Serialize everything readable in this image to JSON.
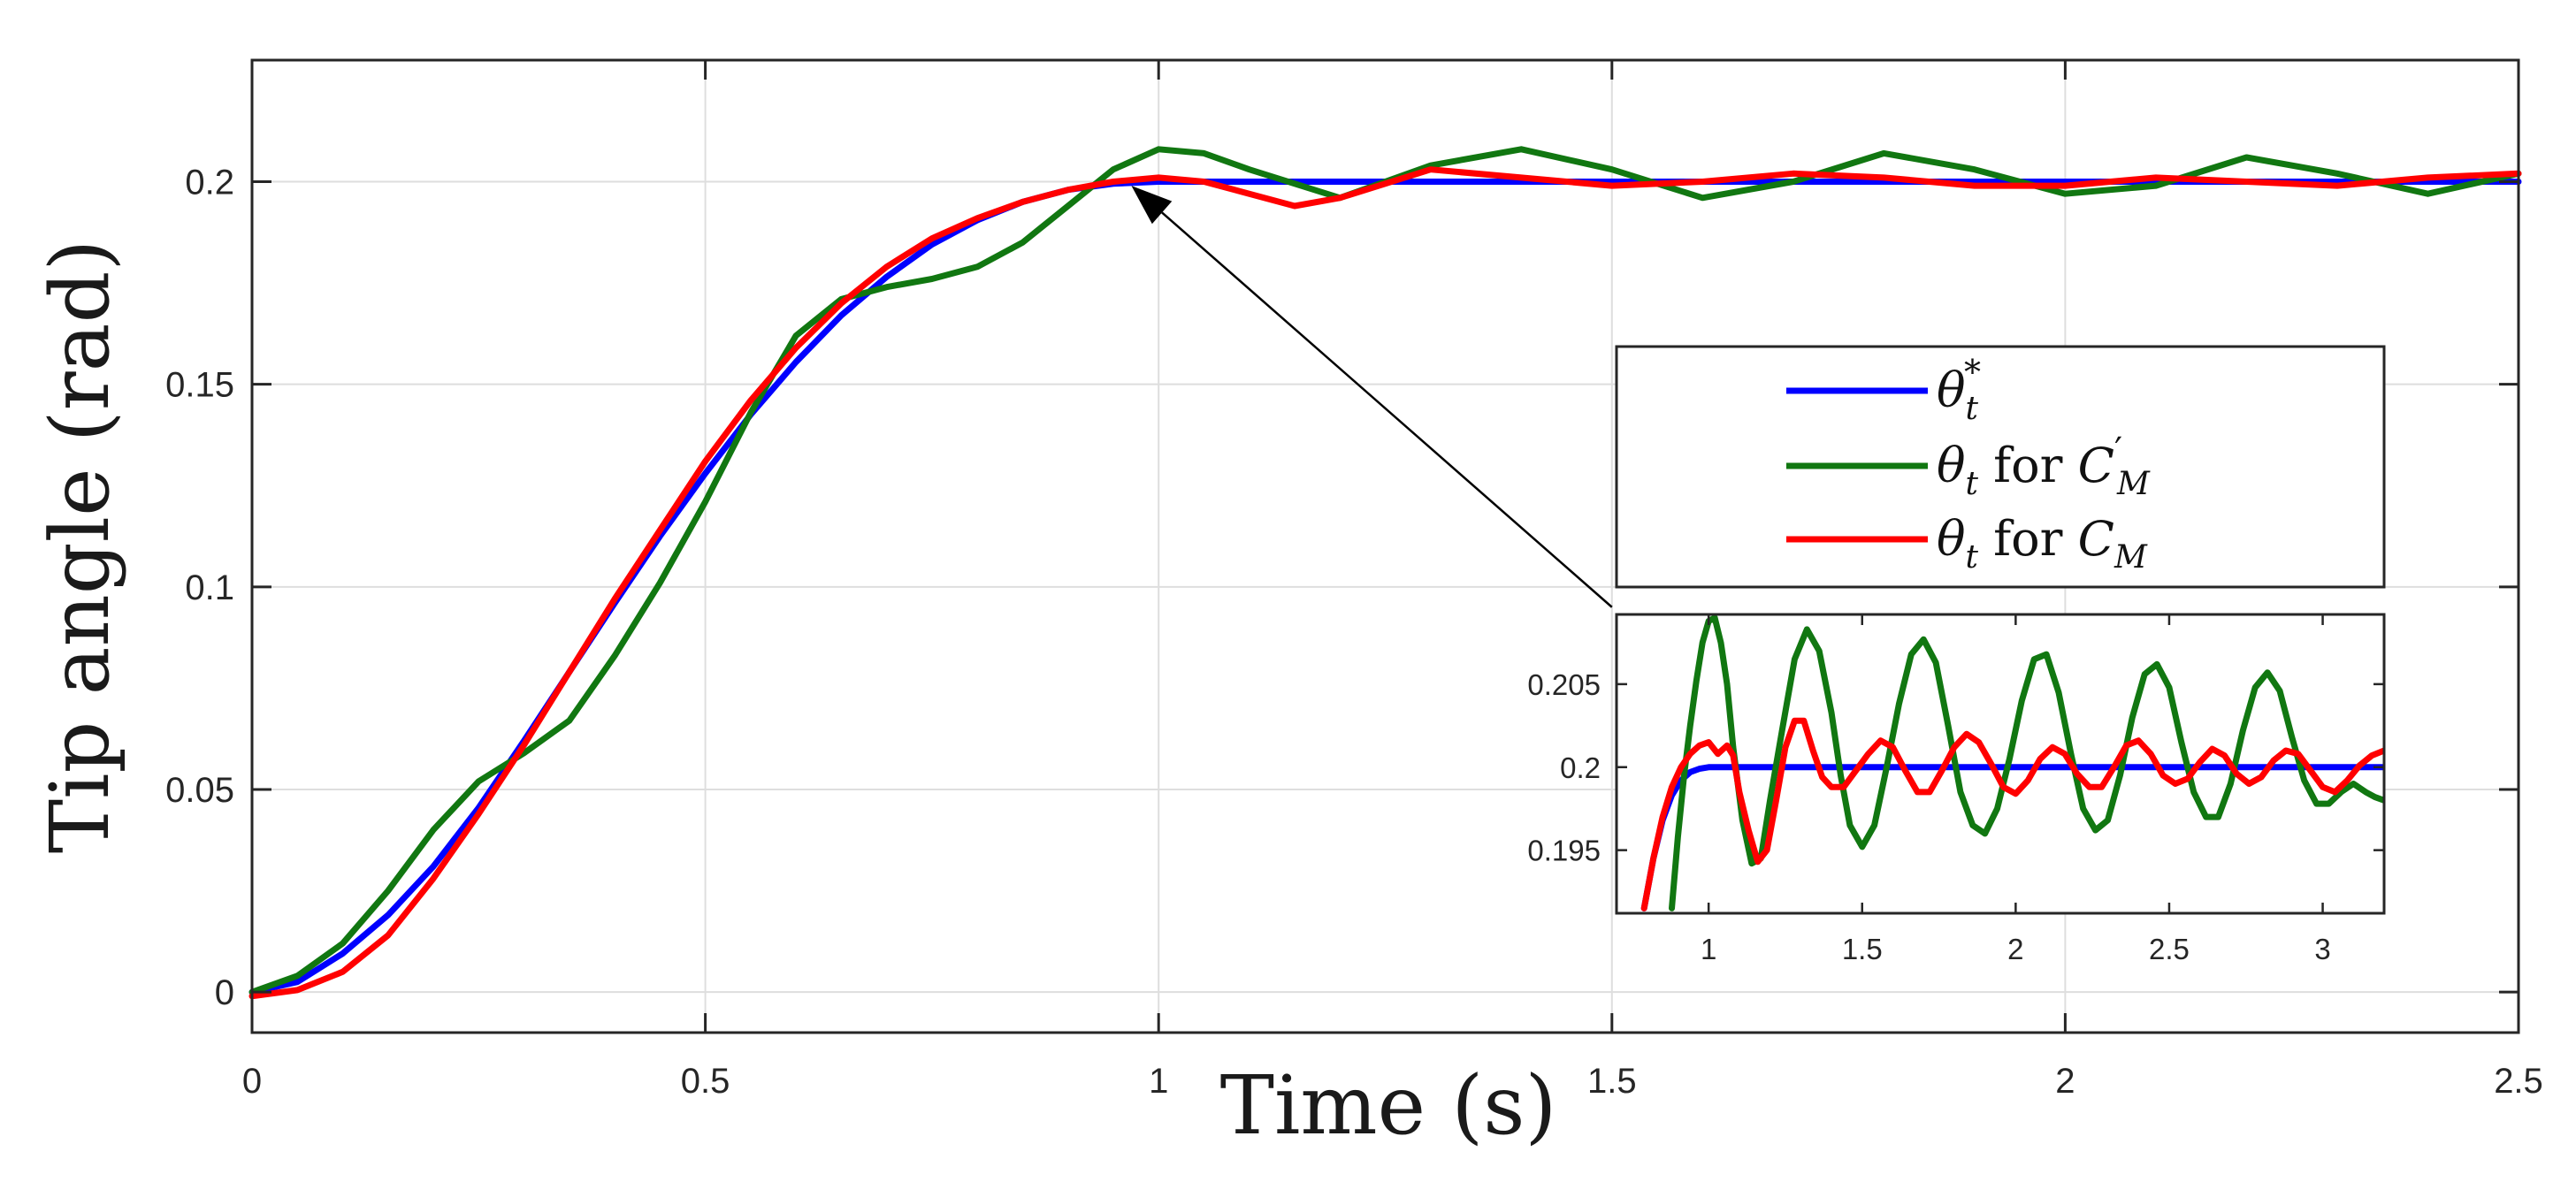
{
  "chart_data": [
    {
      "type": "line",
      "xlabel": "Time (s)",
      "ylabel": "Tip angle (rad)",
      "xlim": [
        0,
        2.5
      ],
      "ylim": [
        -0.01,
        0.23
      ],
      "xticks": [
        0,
        0.5,
        1,
        1.5,
        2,
        2.5
      ],
      "xtick_labels": [
        "0",
        "0.5",
        "1",
        "1.5",
        "2",
        "2.5"
      ],
      "yticks": [
        0,
        0.05,
        0.1,
        0.15,
        0.2
      ],
      "ytick_labels": [
        "0",
        "0.05",
        "0.1",
        "0.15",
        "0.2"
      ],
      "grid": true,
      "legend_position": "center-right",
      "series": [
        {
          "name": "θ*t",
          "color": "#0000ff",
          "x": [
            0,
            0.05,
            0.1,
            0.15,
            0.2,
            0.25,
            0.3,
            0.35,
            0.4,
            0.45,
            0.5,
            0.55,
            0.6,
            0.65,
            0.7,
            0.75,
            0.8,
            0.85,
            0.9,
            0.95,
            1.0,
            1.05,
            1.5,
            2.0,
            2.5
          ],
          "y": [
            0,
            0.0025,
            0.0095,
            0.019,
            0.031,
            0.0455,
            0.062,
            0.079,
            0.096,
            0.1125,
            0.128,
            0.1425,
            0.1555,
            0.167,
            0.1765,
            0.1845,
            0.1905,
            0.195,
            0.198,
            0.1995,
            0.2,
            0.2,
            0.2,
            0.2,
            0.2
          ]
        },
        {
          "name": "θt for C′M",
          "color": "#117711",
          "x": [
            0,
            0.05,
            0.1,
            0.15,
            0.2,
            0.25,
            0.3,
            0.35,
            0.4,
            0.45,
            0.5,
            0.55,
            0.6,
            0.65,
            0.7,
            0.75,
            0.8,
            0.85,
            0.9,
            0.95,
            1.0,
            1.05,
            1.1,
            1.2,
            1.3,
            1.4,
            1.5,
            1.6,
            1.7,
            1.8,
            1.9,
            2.0,
            2.1,
            2.2,
            2.3,
            2.4,
            2.5
          ],
          "y": [
            0,
            0.004,
            0.012,
            0.025,
            0.04,
            0.052,
            0.059,
            0.067,
            0.083,
            0.101,
            0.121,
            0.143,
            0.162,
            0.171,
            0.174,
            0.176,
            0.179,
            0.185,
            0.194,
            0.203,
            0.208,
            0.207,
            0.203,
            0.196,
            0.204,
            0.208,
            0.203,
            0.196,
            0.2,
            0.207,
            0.203,
            0.197,
            0.199,
            0.206,
            0.202,
            0.197,
            0.202
          ]
        },
        {
          "name": "θt for CM",
          "color": "#ff0000",
          "x": [
            0,
            0.05,
            0.1,
            0.15,
            0.2,
            0.25,
            0.3,
            0.35,
            0.4,
            0.45,
            0.5,
            0.55,
            0.6,
            0.65,
            0.7,
            0.75,
            0.8,
            0.85,
            0.9,
            0.95,
            1.0,
            1.05,
            1.1,
            1.15,
            1.2,
            1.3,
            1.4,
            1.5,
            1.6,
            1.7,
            1.8,
            1.9,
            2.0,
            2.1,
            2.2,
            2.3,
            2.4,
            2.5
          ],
          "y": [
            -0.001,
            0.0005,
            0.005,
            0.014,
            0.028,
            0.044,
            0.061,
            0.079,
            0.097,
            0.114,
            0.131,
            0.146,
            0.159,
            0.17,
            0.179,
            0.186,
            0.191,
            0.195,
            0.198,
            0.2,
            0.201,
            0.2,
            0.197,
            0.194,
            0.196,
            0.203,
            0.201,
            0.199,
            0.2,
            0.202,
            0.201,
            0.199,
            0.199,
            0.201,
            0.2,
            0.199,
            0.201,
            0.202
          ]
        }
      ],
      "annotation": {
        "type": "arrow",
        "from": {
          "x": 1.5,
          "y": 0.095
        },
        "to": {
          "x": 0.97,
          "y": 0.199
        }
      }
    },
    {
      "type": "line",
      "role": "inset",
      "xlim": [
        0.7,
        3.2
      ],
      "ylim": [
        0.1912,
        0.2092
      ],
      "xticks": [
        1,
        1.5,
        2,
        2.5,
        3
      ],
      "xtick_labels": [
        "1",
        "1.5",
        "2",
        "2.5",
        "3"
      ],
      "yticks": [
        0.195,
        0.2,
        0.205
      ],
      "ytick_labels": [
        "0.195",
        "0.2",
        "0.205"
      ],
      "grid": false,
      "series": [
        {
          "name": "θ*t",
          "color": "#0000ff",
          "x": [
            0.79,
            0.82,
            0.85,
            0.88,
            0.91,
            0.94,
            0.97,
            1.0,
            1.05,
            1.2,
            1.5,
            2.0,
            2.5,
            3.2
          ],
          "y": [
            0.1915,
            0.1945,
            0.1968,
            0.1983,
            0.1992,
            0.1997,
            0.1999,
            0.2,
            0.2,
            0.2,
            0.2,
            0.2,
            0.2,
            0.2
          ]
        },
        {
          "name": "θt for C′M",
          "color": "#117711",
          "x": [
            0.88,
            0.9,
            0.92,
            0.94,
            0.96,
            0.98,
            1.0,
            1.02,
            1.04,
            1.06,
            1.08,
            1.11,
            1.14,
            1.17,
            1.2,
            1.24,
            1.28,
            1.32,
            1.36,
            1.4,
            1.43,
            1.46,
            1.5,
            1.54,
            1.58,
            1.62,
            1.66,
            1.7,
            1.74,
            1.78,
            1.82,
            1.86,
            1.9,
            1.94,
            1.98,
            2.02,
            2.06,
            2.1,
            2.14,
            2.18,
            2.22,
            2.26,
            2.3,
            2.34,
            2.38,
            2.42,
            2.46,
            2.5,
            2.54,
            2.58,
            2.62,
            2.66,
            2.7,
            2.74,
            2.78,
            2.82,
            2.86,
            2.9,
            2.94,
            2.98,
            3.02,
            3.06,
            3.1,
            3.14,
            3.17,
            3.2
          ],
          "y": [
            0.1915,
            0.1958,
            0.1995,
            0.2025,
            0.2052,
            0.2075,
            0.2088,
            0.209,
            0.2075,
            0.205,
            0.2012,
            0.1968,
            0.1942,
            0.1945,
            0.198,
            0.2023,
            0.2065,
            0.2083,
            0.207,
            0.2033,
            0.1995,
            0.1965,
            0.1952,
            0.1965,
            0.2,
            0.2038,
            0.2068,
            0.2077,
            0.2063,
            0.2025,
            0.1985,
            0.1965,
            0.196,
            0.1975,
            0.2005,
            0.204,
            0.2065,
            0.2068,
            0.2045,
            0.2008,
            0.1975,
            0.1962,
            0.1968,
            0.1995,
            0.203,
            0.2056,
            0.2062,
            0.2048,
            0.2015,
            0.1985,
            0.197,
            0.197,
            0.199,
            0.2022,
            0.2048,
            0.2057,
            0.2046,
            0.2018,
            0.1992,
            0.1978,
            0.1978,
            0.1985,
            0.199,
            0.1985,
            0.1982,
            0.198
          ]
        },
        {
          "name": "θt for CM",
          "color": "#ff0000",
          "x": [
            0.79,
            0.82,
            0.85,
            0.88,
            0.91,
            0.94,
            0.97,
            1.0,
            1.03,
            1.06,
            1.08,
            1.1,
            1.13,
            1.16,
            1.19,
            1.22,
            1.25,
            1.28,
            1.31,
            1.34,
            1.37,
            1.4,
            1.44,
            1.48,
            1.52,
            1.56,
            1.6,
            1.64,
            1.68,
            1.72,
            1.76,
            1.8,
            1.84,
            1.88,
            1.92,
            1.96,
            2.0,
            2.04,
            2.08,
            2.12,
            2.16,
            2.2,
            2.24,
            2.28,
            2.32,
            2.36,
            2.4,
            2.44,
            2.48,
            2.52,
            2.56,
            2.6,
            2.64,
            2.68,
            2.72,
            2.76,
            2.8,
            2.84,
            2.88,
            2.92,
            2.96,
            3.0,
            3.04,
            3.08,
            3.12,
            3.16,
            3.2
          ],
          "y": [
            0.1915,
            0.1945,
            0.197,
            0.1988,
            0.2,
            0.2008,
            0.2013,
            0.2015,
            0.2008,
            0.2013,
            0.2007,
            0.1985,
            0.1962,
            0.1943,
            0.195,
            0.198,
            0.2012,
            0.2028,
            0.2028,
            0.201,
            0.1994,
            0.1988,
            0.1988,
            0.1998,
            0.2008,
            0.2016,
            0.2012,
            0.1998,
            0.1985,
            0.1985,
            0.1998,
            0.2012,
            0.202,
            0.2015,
            0.2002,
            0.1988,
            0.1984,
            0.1992,
            0.2005,
            0.2012,
            0.2008,
            0.1996,
            0.1988,
            0.1988,
            0.2,
            0.2013,
            0.2016,
            0.2008,
            0.1995,
            0.199,
            0.1993,
            0.2003,
            0.2011,
            0.2007,
            0.1996,
            0.199,
            0.1994,
            0.2004,
            0.201,
            0.2008,
            0.1998,
            0.1988,
            0.1985,
            0.1992,
            0.2001,
            0.2007,
            0.201
          ]
        }
      ]
    }
  ],
  "legend": {
    "entries": [
      {
        "symbol": "θ",
        "sub": "t",
        "sup": "*",
        "text": ""
      },
      {
        "symbol": "θ",
        "sub": "t",
        "sup": "",
        "text": " for ",
        "c": "C",
        "c_sup": "′",
        "c_sub": "M"
      },
      {
        "symbol": "θ",
        "sub": "t",
        "sup": "",
        "text": " for ",
        "c": "C",
        "c_sup": "",
        "c_sub": "M"
      }
    ]
  }
}
